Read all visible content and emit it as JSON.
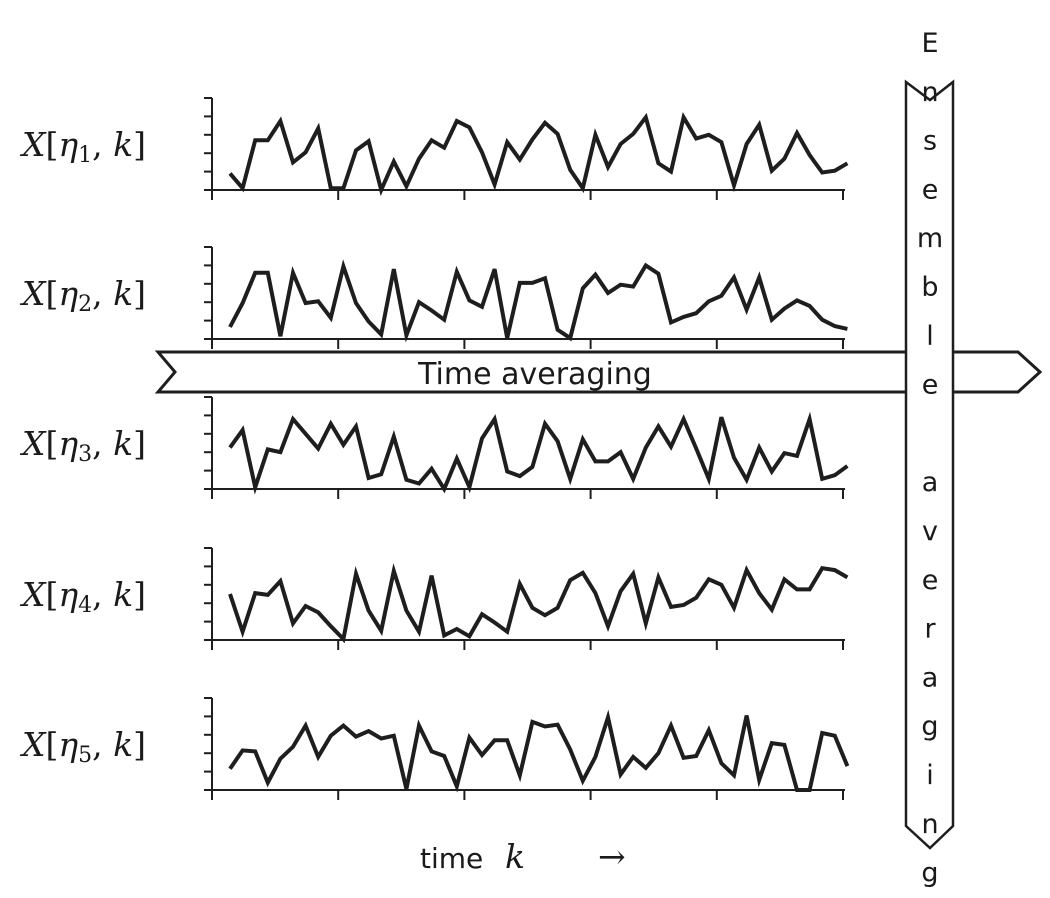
{
  "panels": [
    {
      "label_var": "X",
      "label_sub": "1",
      "label_idx": "k",
      "values": [
        0.9,
        0.1,
        2.7,
        2.7,
        3.75,
        1.5,
        2.05,
        3.35,
        0.1,
        0.1,
        2.15,
        2.65,
        0,
        1.55,
        0.2,
        1.7,
        2.7,
        2.3,
        3.75,
        3.4,
        2.05,
        0.3,
        2.6,
        1.65,
        2.75,
        3.65,
        3.05,
        1.1,
        0.1,
        3.0,
        1.25,
        2.5,
        3.05,
        3.95,
        1.45,
        1.0,
        3.95,
        2.8,
        3.0,
        2.6,
        0.25,
        2.5,
        3.55,
        1.05,
        1.7,
        3.1,
        1.9,
        0.95,
        1.05,
        1.45
      ]
    },
    {
      "label_var": "X",
      "label_sub": "2",
      "label_idx": "k",
      "values": [
        0.65,
        1.95,
        3.6,
        3.6,
        0.15,
        3.6,
        1.95,
        2.05,
        1.15,
        3.95,
        1.95,
        0.95,
        0.25,
        3.8,
        0.2,
        2.0,
        1.55,
        1.05,
        3.65,
        2.1,
        1.75,
        3.8,
        0.05,
        3.05,
        3.05,
        3.3,
        0.5,
        0.05,
        2.75,
        3.5,
        2.5,
        2.95,
        2.85,
        4.0,
        3.55,
        0.9,
        1.2,
        1.4,
        2.05,
        2.35,
        3.35,
        1.6,
        3.35,
        1.05,
        1.65,
        2.1,
        1.8,
        1.05,
        0.7,
        0.55
      ]
    },
    {
      "label_var": "X",
      "label_sub": "3",
      "label_idx": "k",
      "values": [
        2.25,
        3.2,
        0.1,
        2.15,
        2.0,
        3.8,
        3.0,
        2.2,
        3.55,
        2.4,
        3.4,
        0.6,
        0.8,
        2.85,
        0.5,
        0.3,
        1.1,
        0,
        1.65,
        0.1,
        2.75,
        3.8,
        0.95,
        0.7,
        1.2,
        3.55,
        2.6,
        0.55,
        2.7,
        1.5,
        1.5,
        2.0,
        0.55,
        2.25,
        3.4,
        2.3,
        3.8,
        2.2,
        0.55,
        3.9,
        1.7,
        0.5,
        2.25,
        0.95,
        1.95,
        1.8,
        3.8,
        0.55,
        0.75,
        1.25
      ]
    },
    {
      "label_var": "X",
      "label_sub": "4",
      "label_idx": "k",
      "values": [
        2.5,
        0.45,
        2.55,
        2.45,
        3.2,
        0.9,
        1.85,
        1.5,
        0.75,
        0.05,
        3.6,
        1.6,
        0.5,
        3.75,
        1.6,
        0.45,
        3.5,
        0.25,
        0.6,
        0.2,
        1.4,
        0.95,
        0.45,
        3.05,
        1.75,
        1.35,
        1.75,
        3.25,
        3.65,
        2.55,
        0.75,
        2.65,
        3.6,
        0.9,
        3.4,
        1.8,
        1.9,
        2.3,
        3.3,
        3.0,
        1.75,
        3.8,
        2.55,
        1.65,
        3.3,
        2.75,
        2.75,
        3.9,
        3.8,
        3.4
      ]
    },
    {
      "label_var": "X",
      "label_sub": "5",
      "label_idx": "k",
      "values": [
        1.15,
        2.15,
        2.1,
        0.4,
        1.7,
        2.35,
        3.5,
        1.8,
        2.95,
        3.5,
        2.9,
        3.2,
        2.8,
        2.95,
        0.05,
        3.5,
        2.1,
        1.85,
        0.2,
        2.85,
        1.9,
        2.7,
        2.7,
        0.8,
        3.7,
        3.45,
        3.55,
        2.2,
        0.5,
        1.8,
        3.95,
        0.85,
        1.8,
        1.2,
        2.0,
        3.5,
        1.75,
        1.85,
        3.25,
        1.45,
        0.8,
        4.05,
        0.55,
        2.55,
        2.45,
        0,
        0,
        3.1,
        2.95,
        1.3
      ]
    }
  ],
  "y_range": [
    0,
    5
  ],
  "y_ticks": 6,
  "x_ticks": 6,
  "time_averaging_label": "Time averaging",
  "ensemble_averaging_label": "Ensemble averaging",
  "x_axis_label_text": "time",
  "x_axis_label_var": "k",
  "x_axis_arrow": "→",
  "colors": {
    "line": "#1e1e1e",
    "background": "#ffffff"
  }
}
